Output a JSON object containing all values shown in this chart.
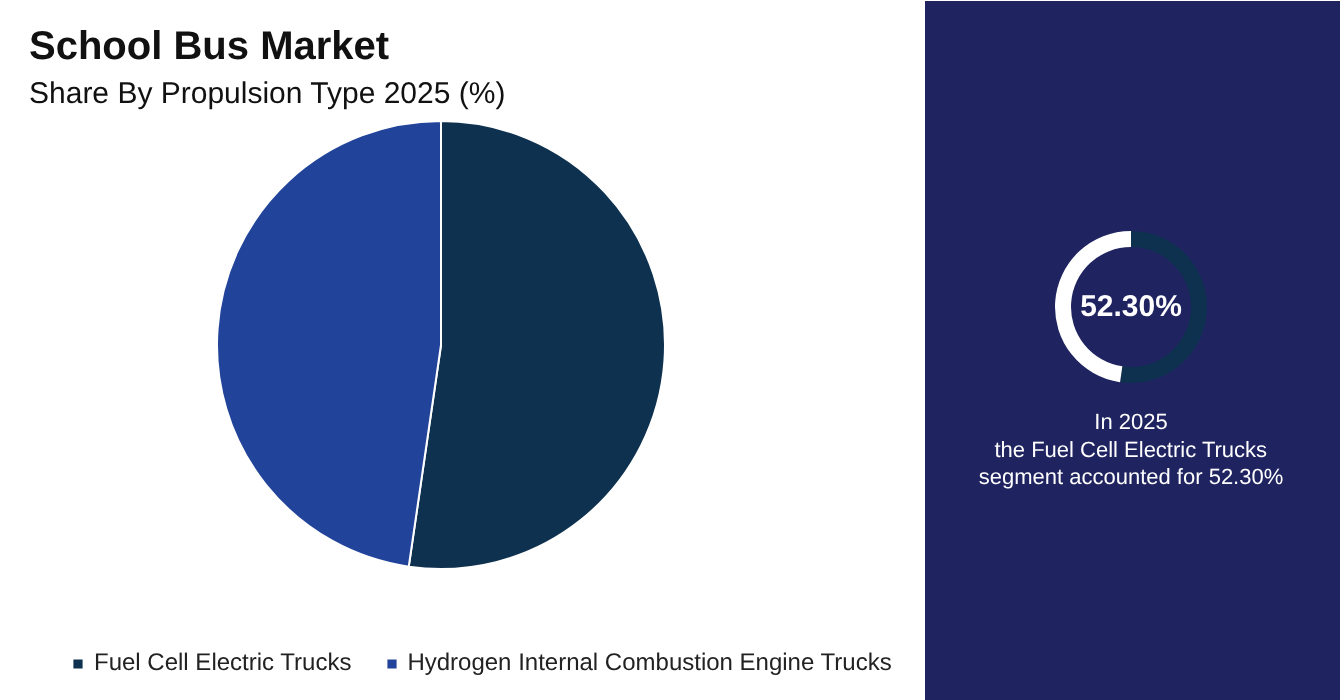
{
  "chart_data": [
    {
      "type": "pie",
      "title": "School Bus Market",
      "subtitle": "Share By Propulsion Type 2025 (%)",
      "categories": [
        "Fuel Cell Electric Trucks",
        "Hydrogen Internal Combustion Engine Trucks"
      ],
      "values": [
        52.3,
        47.7
      ],
      "colors": [
        "#0e3150",
        "#21449a"
      ],
      "legend": "bottom"
    },
    {
      "type": "donut",
      "categories": [
        null,
        null
      ],
      "values": [
        52.3,
        47.7
      ],
      "colors": [
        "#0e3150",
        "#ffffff"
      ],
      "annotations": [
        "52.30%",
        "In 2025\nthe Fuel Cell Electric Trucks\nsegment accounted for 52.30%"
      ]
    }
  ]
}
